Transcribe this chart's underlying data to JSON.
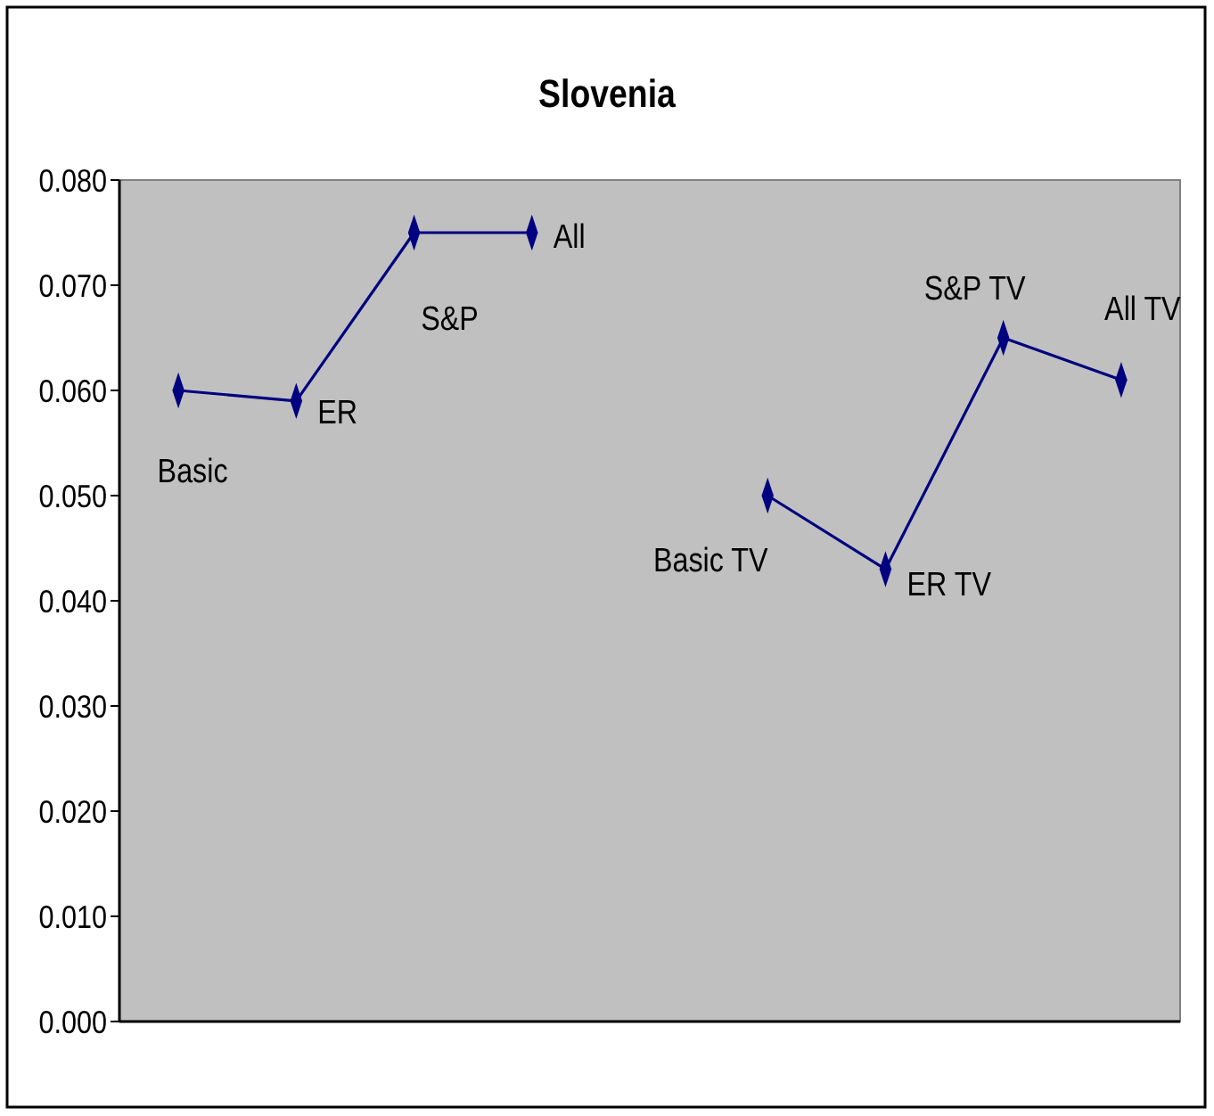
{
  "chart_data": {
    "type": "line",
    "title": "Slovenia",
    "categories": [
      null,
      null,
      null,
      null,
      null,
      null,
      null,
      null,
      null
    ],
    "series": [
      {
        "color": "#000080",
        "values": [
          0.06,
          0.059,
          0.075,
          0.075,
          null,
          0.05,
          0.043,
          0.065,
          0.061
        ]
      }
    ],
    "ylim": [
      0,
      0.08
    ],
    "yticks": [
      {
        "value": 0,
        "label": "0.000"
      },
      {
        "value": 0.01,
        "label": "0.010"
      },
      {
        "value": 0.02,
        "label": "0.020"
      },
      {
        "value": 0.03,
        "label": "0.030"
      },
      {
        "value": 0.04,
        "label": "0.040"
      },
      {
        "value": 0.05,
        "label": "0.050"
      },
      {
        "value": 0.06,
        "label": "0.060"
      },
      {
        "value": 0.07,
        "label": "0.070"
      },
      {
        "value": 0.08,
        "label": "0.080"
      }
    ],
    "marker": "diamond",
    "line_style": "solid",
    "grid": false,
    "annotations": [
      "Basic",
      "ER",
      "S&P",
      "All",
      "Basic TV",
      "ER TV",
      "S&P  TV",
      "All TV"
    ]
  }
}
